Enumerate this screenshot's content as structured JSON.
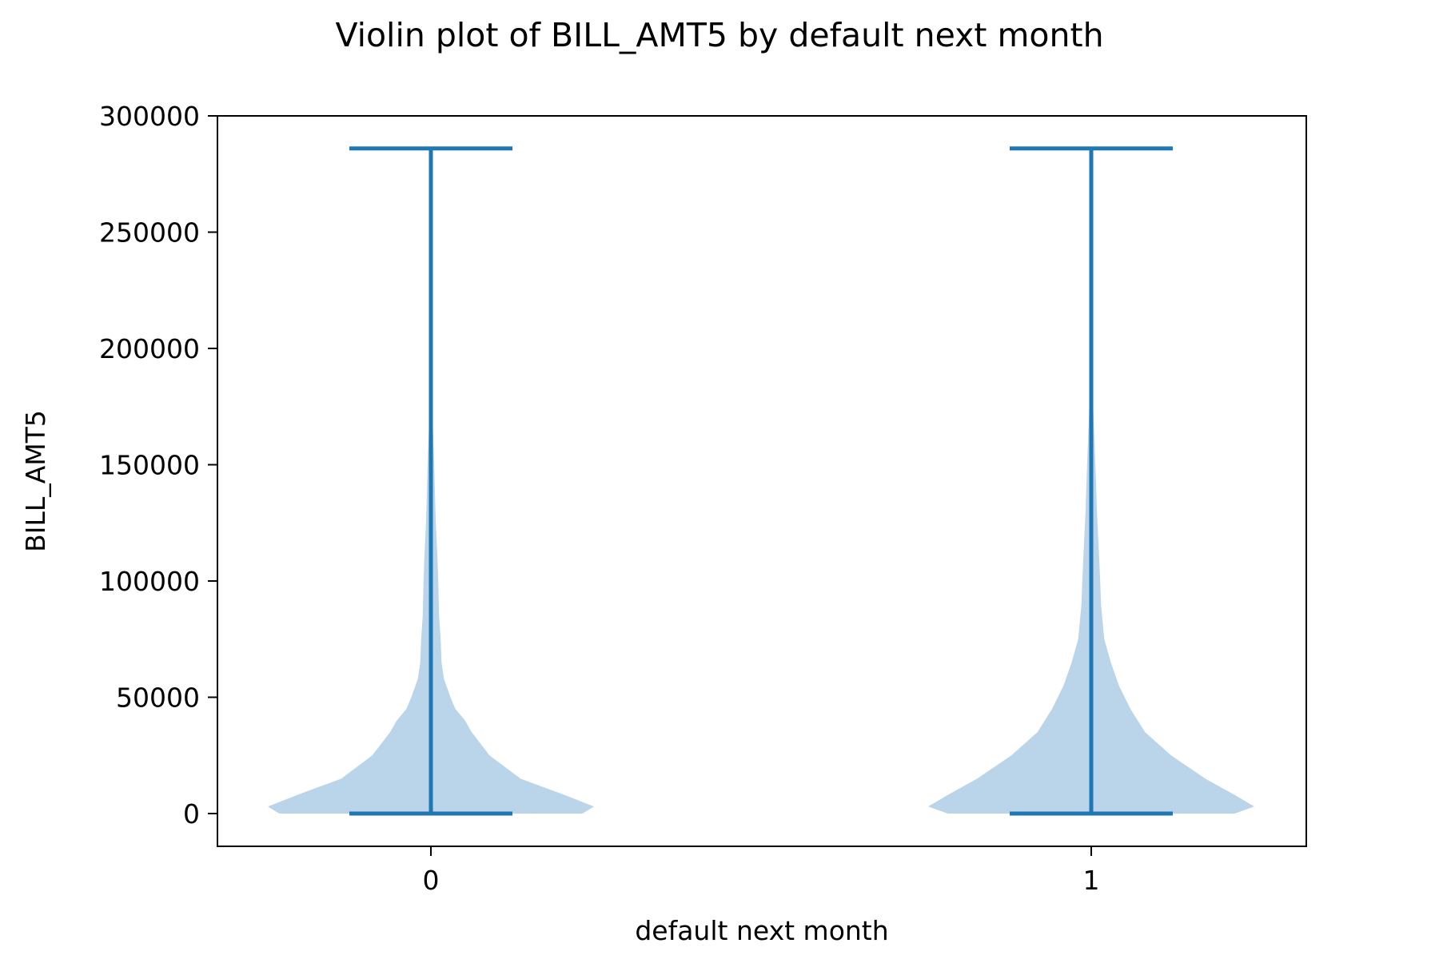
{
  "chart_data": {
    "type": "violin",
    "title": "Violin plot of BILL_AMT5 by default next month",
    "xlabel": "default next month",
    "ylabel": "BILL_AMT5",
    "ylim": [
      -15000,
      300000
    ],
    "yticks": [
      0,
      50000,
      100000,
      150000,
      200000,
      250000,
      300000
    ],
    "grid": false,
    "colors": {
      "body": "#bad5e9",
      "lines": "#1f77b4",
      "axes": "#000000"
    },
    "categories": [
      "0",
      "1"
    ],
    "series": [
      {
        "category": "0",
        "min": 0,
        "max": 286000,
        "density": [
          [
            0,
            0.93
          ],
          [
            3000,
            1.0
          ],
          [
            8000,
            0.82
          ],
          [
            15000,
            0.55
          ],
          [
            25000,
            0.36
          ],
          [
            35000,
            0.25
          ],
          [
            40000,
            0.21
          ],
          [
            45000,
            0.15
          ],
          [
            50000,
            0.12
          ],
          [
            58000,
            0.08
          ],
          [
            65000,
            0.065
          ],
          [
            75000,
            0.06
          ],
          [
            85000,
            0.05
          ],
          [
            100000,
            0.045
          ],
          [
            110000,
            0.04
          ],
          [
            125000,
            0.03
          ],
          [
            140000,
            0.024
          ],
          [
            155000,
            0.018
          ],
          [
            170000,
            0.01
          ],
          [
            190000,
            0.006
          ],
          [
            210000,
            0.002
          ],
          [
            230000,
            0.0005
          ],
          [
            286000,
            0
          ]
        ]
      },
      {
        "category": "1",
        "min": 0,
        "max": 286000,
        "density": [
          [
            0,
            0.88
          ],
          [
            3000,
            1.0
          ],
          [
            8000,
            0.88
          ],
          [
            15000,
            0.7
          ],
          [
            25000,
            0.49
          ],
          [
            35000,
            0.33
          ],
          [
            45000,
            0.24
          ],
          [
            55000,
            0.17
          ],
          [
            65000,
            0.12
          ],
          [
            75000,
            0.08
          ],
          [
            90000,
            0.06
          ],
          [
            100000,
            0.055
          ],
          [
            115000,
            0.045
          ],
          [
            130000,
            0.035
          ],
          [
            145000,
            0.028
          ],
          [
            160000,
            0.02
          ],
          [
            175000,
            0.012
          ],
          [
            190000,
            0.006
          ],
          [
            210000,
            0.002
          ],
          [
            230000,
            0.0005
          ],
          [
            286000,
            0
          ]
        ]
      }
    ]
  }
}
